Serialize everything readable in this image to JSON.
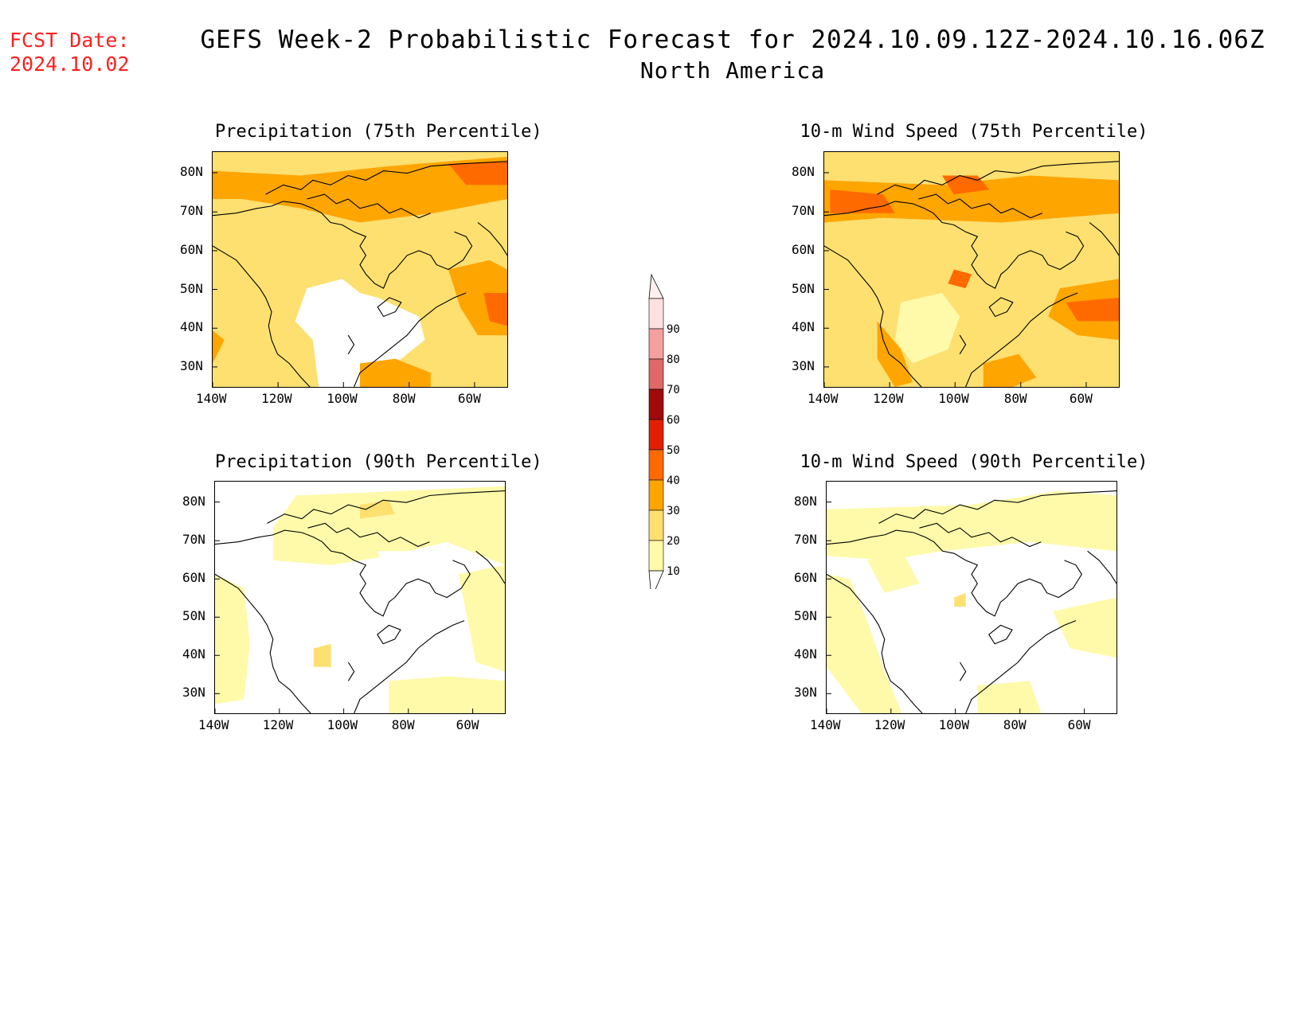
{
  "header": {
    "fcst_label": "FCST Date:",
    "fcst_date": "2024.10.02",
    "title": "GEFS Week-2 Probabilistic Forecast for 2024.10.09.12Z-2024.10.16.06Z",
    "subtitle": "North America"
  },
  "axes": {
    "lat_labels": [
      "80N",
      "70N",
      "60N",
      "50N",
      "40N",
      "30N"
    ],
    "lon_labels": [
      "140W",
      "120W",
      "100W",
      "80W",
      "60W"
    ]
  },
  "panels": [
    {
      "title": "Precipitation (75th Percentile)",
      "intensity": "high"
    },
    {
      "title": "10-m Wind Speed (75th Percentile)",
      "intensity": "high"
    },
    {
      "title": "Precipitation (90th Percentile)",
      "intensity": "low"
    },
    {
      "title": "10-m Wind Speed (90th Percentile)",
      "intensity": "low"
    }
  ],
  "colorbar": {
    "labels": [
      "90",
      "80",
      "70",
      "60",
      "50",
      "40",
      "30",
      "20",
      "10"
    ],
    "colors": [
      "#fde0e0",
      "#f4a0a0",
      "#e06868",
      "#a00a0a",
      "#e02000",
      "#ff6a00",
      "#ffa500",
      "#fde070",
      "#fffaaa"
    ]
  }
}
